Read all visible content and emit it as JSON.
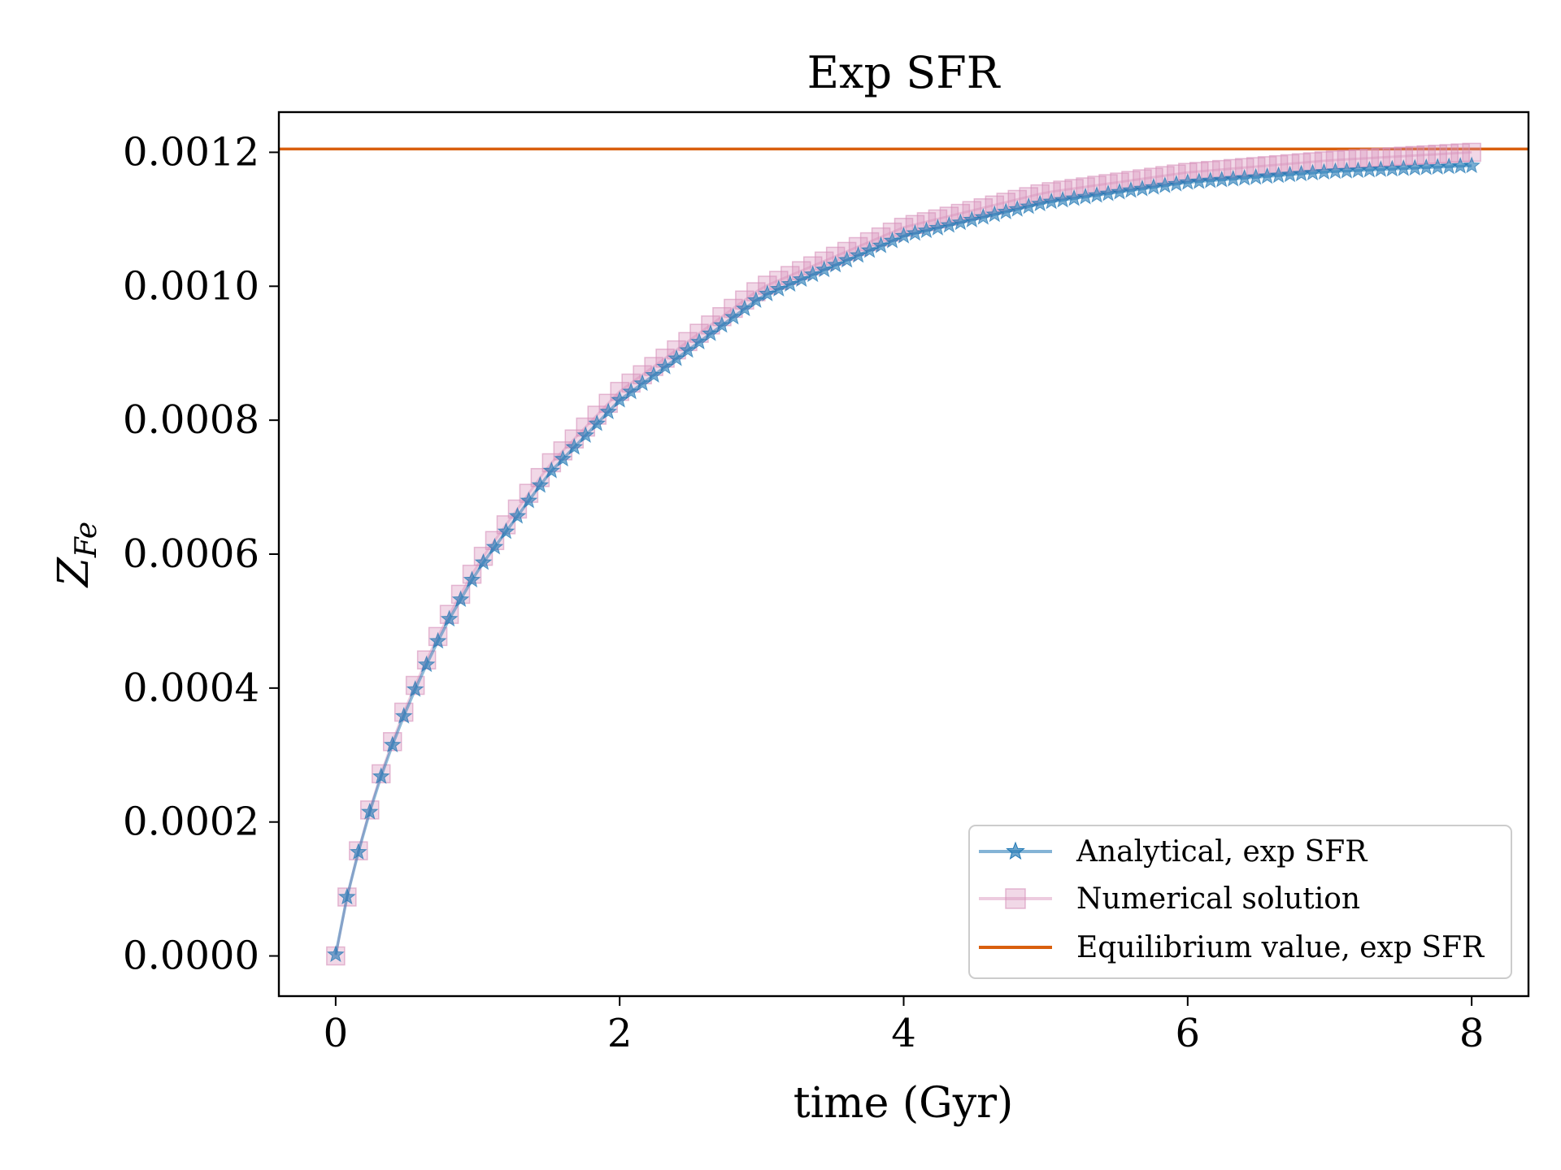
{
  "chart_data": {
    "type": "line",
    "title": "Exp SFR",
    "xlabel": "time (Gyr)",
    "ylabel": "Z",
    "ylabel_sub": "Fe",
    "xlim": [
      -0.4,
      8.4
    ],
    "ylim": [
      -6e-05,
      0.00126
    ],
    "x_ticks": [
      0,
      2,
      4,
      6,
      8
    ],
    "x_tick_labels": [
      "0",
      "2",
      "4",
      "6",
      "8"
    ],
    "y_ticks": [
      0.0,
      0.0002,
      0.0004,
      0.0006,
      0.0008,
      0.001,
      0.0012
    ],
    "y_tick_labels": [
      "0.0000",
      "0.0002",
      "0.0004",
      "0.0006",
      "0.0008",
      "0.0010",
      "0.0012"
    ],
    "grid": false,
    "legend_position": "bottom-right",
    "series": [
      {
        "name": "Analytical, exp SFR",
        "color": "#1f77b4",
        "marker": "star",
        "x_start": 0.0,
        "x_step": 0.08,
        "point_count": 101,
        "x_samples": [
          0,
          0.08,
          0.16,
          0.24,
          0.32,
          0.4,
          0.48,
          0.56,
          0.64,
          0.72,
          0.8,
          1.0,
          1.5,
          2.0,
          3.0,
          4.0,
          5.0,
          6.0,
          7.0,
          8.0
        ],
        "y_samples": [
          2e-06,
          8.8e-05,
          0.000155,
          0.000215,
          0.000268,
          0.000315,
          0.000358,
          0.000398,
          0.000435,
          0.00047,
          0.000503,
          0.000576,
          0.00072,
          0.00083,
          0.000985,
          0.001075,
          0.001125,
          0.001155,
          0.001171,
          0.00118
        ]
      },
      {
        "name": "Numerical solution",
        "color": "#d68fb9",
        "marker": "square",
        "x_start": 0.0,
        "x_step": 0.08,
        "point_count": 101,
        "x_samples": [
          0,
          0.08,
          0.16,
          0.24,
          0.32,
          0.4,
          0.48,
          0.56,
          0.64,
          0.72,
          0.8,
          1.0,
          1.5,
          2.0,
          3.0,
          4.0,
          5.0,
          6.0,
          7.0,
          8.0
        ],
        "y_samples": [
          0.0,
          8.8e-05,
          0.000157,
          0.000218,
          0.000272,
          0.00032,
          0.000364,
          0.000404,
          0.000442,
          0.000477,
          0.00051,
          0.000585,
          0.000732,
          0.000843,
          0.000998,
          0.001088,
          0.00114,
          0.00117,
          0.001188,
          0.0012
        ]
      },
      {
        "name": "Equilibrium value, exp SFR",
        "color": "#d95f0e",
        "marker": "none",
        "y_constant": 0.001205
      }
    ]
  }
}
